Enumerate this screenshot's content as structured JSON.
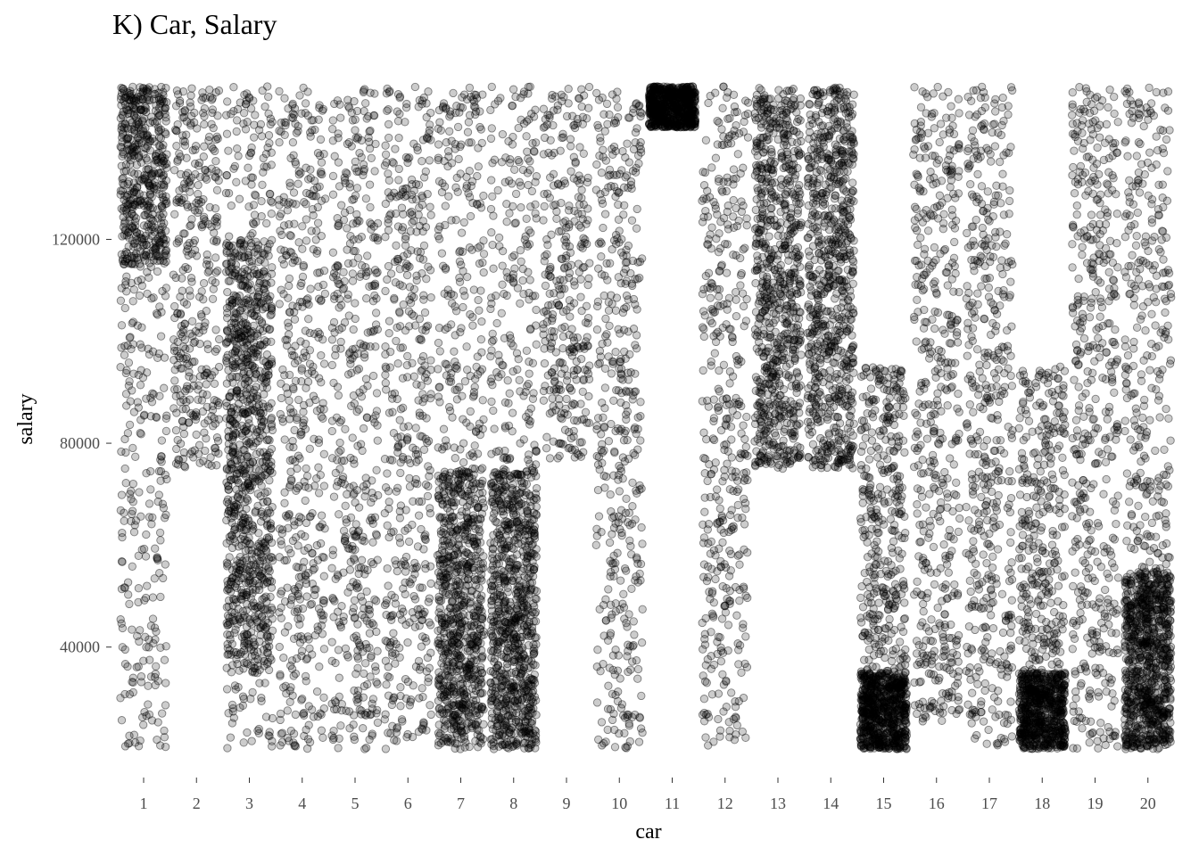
{
  "chart_data": {
    "type": "scatter",
    "title": "K) Car, Salary",
    "xlabel": "car",
    "ylabel": "salary",
    "x_ticks": [
      "1",
      "2",
      "3",
      "4",
      "5",
      "6",
      "7",
      "8",
      "9",
      "10",
      "11",
      "12",
      "13",
      "14",
      "15",
      "16",
      "17",
      "18",
      "19",
      "20"
    ],
    "y_ticks": [
      40000,
      80000,
      120000
    ],
    "y_tick_labels": [
      "40000",
      "80000",
      "120000"
    ],
    "ylim": [
      20000,
      150000
    ],
    "jitter": "points jittered horizontally within each car category",
    "grid": false,
    "legend": "none",
    "point_color": "#000000",
    "point_alpha": 0.2,
    "groups": [
      {
        "car": "1",
        "count": 750,
        "segments": [
          {
            "min": 20000,
            "max": 150000,
            "weight": 0.45
          },
          {
            "min": 115000,
            "max": 150000,
            "weight": 0.55
          }
        ]
      },
      {
        "car": "2",
        "count": 350,
        "segments": [
          {
            "min": 75000,
            "max": 150000,
            "weight": 1
          }
        ]
      },
      {
        "car": "3",
        "count": 1100,
        "segments": [
          {
            "min": 20000,
            "max": 150000,
            "weight": 0.35
          },
          {
            "min": 35000,
            "max": 120000,
            "weight": 0.65
          }
        ]
      },
      {
        "car": "4",
        "count": 450,
        "segments": [
          {
            "min": 20000,
            "max": 150000,
            "weight": 1
          }
        ]
      },
      {
        "car": "5",
        "count": 450,
        "segments": [
          {
            "min": 20000,
            "max": 150000,
            "weight": 1
          }
        ]
      },
      {
        "car": "6",
        "count": 450,
        "segments": [
          {
            "min": 20000,
            "max": 150000,
            "weight": 1
          }
        ]
      },
      {
        "car": "7",
        "count": 1000,
        "segments": [
          {
            "min": 20000,
            "max": 150000,
            "weight": 0.35
          },
          {
            "min": 20000,
            "max": 75000,
            "weight": 0.65
          }
        ]
      },
      {
        "car": "8",
        "count": 1050,
        "segments": [
          {
            "min": 20000,
            "max": 150000,
            "weight": 0.35
          },
          {
            "min": 20000,
            "max": 75000,
            "weight": 0.65
          }
        ]
      },
      {
        "car": "9",
        "count": 320,
        "segments": [
          {
            "min": 77000,
            "max": 150000,
            "weight": 1
          }
        ]
      },
      {
        "car": "10",
        "count": 420,
        "segments": [
          {
            "min": 20000,
            "max": 150000,
            "weight": 1
          }
        ]
      },
      {
        "car": "11",
        "count": 700,
        "segments": [
          {
            "min": 142000,
            "max": 150000,
            "weight": 1
          }
        ]
      },
      {
        "car": "12",
        "count": 420,
        "segments": [
          {
            "min": 20000,
            "max": 150000,
            "weight": 1
          }
        ]
      },
      {
        "car": "13",
        "count": 800,
        "segments": [
          {
            "min": 75000,
            "max": 150000,
            "weight": 1
          }
        ]
      },
      {
        "car": "14",
        "count": 800,
        "segments": [
          {
            "min": 75000,
            "max": 150000,
            "weight": 1
          }
        ]
      },
      {
        "car": "15",
        "count": 1100,
        "segments": [
          {
            "min": 20000,
            "max": 95000,
            "weight": 0.4
          },
          {
            "min": 20000,
            "max": 35000,
            "weight": 0.6
          }
        ]
      },
      {
        "car": "16",
        "count": 480,
        "segments": [
          {
            "min": 25000,
            "max": 150000,
            "weight": 1
          }
        ]
      },
      {
        "car": "17",
        "count": 480,
        "segments": [
          {
            "min": 20000,
            "max": 150000,
            "weight": 1
          }
        ]
      },
      {
        "car": "18",
        "count": 1000,
        "segments": [
          {
            "min": 20000,
            "max": 95000,
            "weight": 0.4
          },
          {
            "min": 20000,
            "max": 35000,
            "weight": 0.6
          }
        ]
      },
      {
        "car": "19",
        "count": 480,
        "segments": [
          {
            "min": 20000,
            "max": 150000,
            "weight": 1
          }
        ]
      },
      {
        "car": "20",
        "count": 1200,
        "segments": [
          {
            "min": 20000,
            "max": 150000,
            "weight": 0.35
          },
          {
            "min": 20000,
            "max": 55000,
            "weight": 0.65
          }
        ]
      }
    ]
  }
}
